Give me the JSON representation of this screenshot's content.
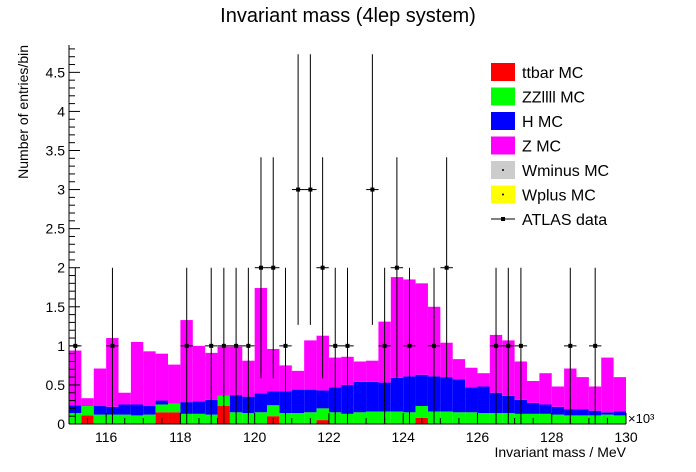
{
  "chart_data": {
    "type": "bar",
    "title": "Invariant mass (4lep system)",
    "xlabel": "Invariant mass / MeV",
    "ylabel": "Number of entries/bin",
    "x_multiplier": "×10³",
    "xlim": [
      115,
      130
    ],
    "ylim": [
      0,
      4.85
    ],
    "x_ticks": [
      116,
      118,
      120,
      122,
      124,
      126,
      128,
      130
    ],
    "x_tick_labels": [
      "116",
      "118",
      "120",
      "122",
      "124",
      "126",
      "128",
      "130"
    ],
    "y_ticks": [
      0,
      0.5,
      1,
      1.5,
      2,
      2.5,
      3,
      3.5,
      4,
      4.5
    ],
    "y_tick_labels": [
      "0",
      "0.5",
      "1",
      "1.5",
      "2",
      "2.5",
      "3",
      "3.5",
      "4",
      "4.5"
    ],
    "grid": false,
    "stacked": true,
    "bin_width": 0.3333,
    "legend_position": "top-right",
    "bin_starts": [
      115.0,
      115.333,
      115.667,
      116.0,
      116.333,
      116.667,
      117.0,
      117.333,
      117.667,
      118.0,
      118.333,
      118.667,
      119.0,
      119.333,
      119.667,
      120.0,
      120.333,
      120.667,
      121.0,
      121.333,
      121.667,
      122.0,
      122.333,
      122.667,
      123.0,
      123.333,
      123.667,
      124.0,
      124.333,
      124.667,
      125.0,
      125.333,
      125.667,
      126.0,
      126.333,
      126.667,
      127.0,
      127.333,
      127.667,
      128.0,
      128.333,
      128.667,
      129.0,
      129.333,
      129.667
    ],
    "series": [
      {
        "name": "ttbar MC",
        "color": "#ff0000",
        "values": [
          0,
          0.11,
          0,
          0,
          0,
          0,
          0,
          0.15,
          0.15,
          0,
          0,
          0,
          0.23,
          0,
          0,
          0,
          0.1,
          0,
          0,
          0,
          0.05,
          0,
          0,
          0,
          0,
          0,
          0,
          0,
          0.08,
          0,
          0,
          0,
          0,
          0,
          0,
          0,
          0,
          0,
          0,
          0,
          0,
          0,
          0,
          0,
          0
        ]
      },
      {
        "name": "ZZllll MC",
        "color": "#00ff00",
        "values": [
          0.14,
          0.12,
          0.12,
          0.12,
          0.12,
          0.11,
          0.12,
          0.1,
          0.11,
          0.13,
          0.13,
          0.12,
          0.13,
          0.15,
          0.14,
          0.15,
          0.14,
          0.14,
          0.14,
          0.15,
          0.15,
          0.15,
          0.13,
          0.15,
          0.16,
          0.16,
          0.16,
          0.15,
          0.15,
          0.16,
          0.16,
          0.15,
          0.15,
          0.14,
          0.14,
          0.14,
          0.13,
          0.13,
          0.13,
          0.12,
          0.11,
          0.11,
          0.11,
          0.12,
          0.11
        ]
      },
      {
        "name": "H MC",
        "color": "#0000ff",
        "values": [
          0.1,
          0,
          0.11,
          0.1,
          0.13,
          0.14,
          0.11,
          0.05,
          0,
          0.15,
          0.16,
          0.19,
          0,
          0.22,
          0.21,
          0.24,
          0.18,
          0.28,
          0.3,
          0.29,
          0.23,
          0.32,
          0.37,
          0.39,
          0.38,
          0.37,
          0.43,
          0.46,
          0.4,
          0.45,
          0.44,
          0.42,
          0.32,
          0.34,
          0.26,
          0.22,
          0.18,
          0.14,
          0.12,
          0.1,
          0.08,
          0.08,
          0.06,
          0.03,
          0.05
        ]
      },
      {
        "name": "Z MC",
        "color": "#ff00ff",
        "values": [
          0.7,
          0.1,
          0.48,
          0.88,
          0.15,
          0.8,
          0.7,
          0.6,
          0.5,
          1.05,
          0.71,
          0.6,
          0.63,
          0.62,
          0.46,
          1.35,
          0.54,
          0.33,
          0.24,
          0.63,
          0.7,
          0.38,
          0.36,
          0.26,
          0.27,
          0.78,
          1.29,
          1.24,
          1.17,
          0.89,
          0.44,
          0.26,
          0.25,
          0.17,
          0.74,
          0.71,
          0.49,
          0.28,
          0.4,
          0.26,
          0.52,
          0.41,
          0.31,
          0.7,
          0.44
        ]
      },
      {
        "name": "Wminus MC",
        "color": "#cccccc",
        "values": []
      },
      {
        "name": "Wplus MC",
        "color": "#ffff00",
        "values": []
      }
    ],
    "data_series": {
      "name": "ATLAS data",
      "x": [
        115.17,
        116.17,
        118.17,
        118.83,
        119.17,
        119.5,
        119.83,
        120.17,
        120.5,
        120.83,
        121.17,
        121.5,
        121.83,
        122.17,
        122.5,
        123.17,
        123.5,
        123.83,
        124.17,
        124.83,
        125.17,
        126.5,
        126.83,
        127.17,
        128.5,
        129.17
      ],
      "y": [
        1,
        1,
        1,
        1,
        1,
        1,
        1,
        2,
        2,
        1,
        3,
        3,
        2,
        1,
        1,
        3,
        1,
        2,
        1,
        1,
        2,
        1,
        1,
        1,
        1,
        1
      ]
    }
  }
}
